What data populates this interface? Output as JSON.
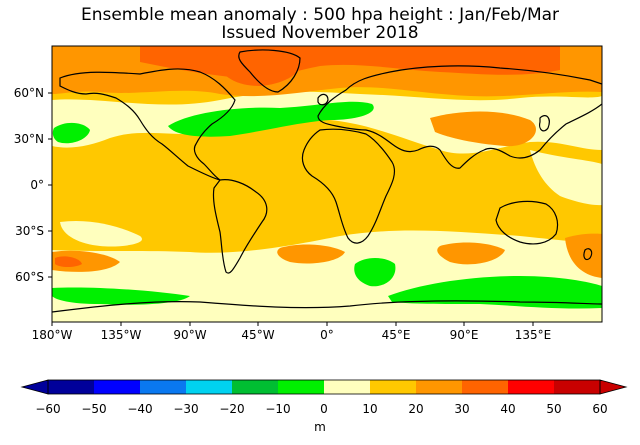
{
  "title_line1": "Ensemble mean anomaly : 500 hpa height : Jan/Feb/Mar",
  "title_line2": "Issued November 2018",
  "lat_labels": [
    "60°N",
    "30°N",
    "0°",
    "30°S",
    "60°S"
  ],
  "lon_labels": [
    "180°W",
    "135°W",
    "90°W",
    "45°W",
    "0°",
    "45°E",
    "90°E",
    "135°E"
  ],
  "colorbar": {
    "ticks": [
      "−60",
      "−50",
      "−40",
      "−30",
      "−20",
      "−10",
      "0",
      "10",
      "20",
      "30",
      "40",
      "50",
      "60"
    ],
    "unit": "m",
    "colors": [
      "#00009a",
      "#0000ff",
      "#0a78f0",
      "#00d2f0",
      "#00be32",
      "#00f000",
      "#ffffbe",
      "#ffc800",
      "#ff9600",
      "#ff6400",
      "#ff0000",
      "#c80000"
    ]
  }
}
